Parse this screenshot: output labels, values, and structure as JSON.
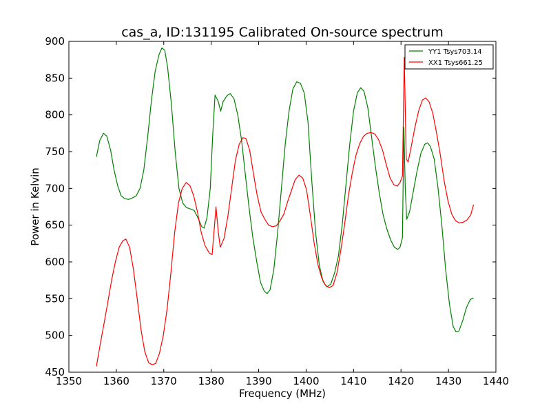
{
  "chart_data": {
    "type": "line",
    "title": "cas_a, ID:131195 Calibrated On-source spectrum",
    "xlabel": "Frequency (MHz)",
    "ylabel": "Power in Kelvin",
    "xlim": [
      1350,
      1440
    ],
    "ylim": [
      450,
      900
    ],
    "xticks": [
      1350,
      1360,
      1370,
      1380,
      1390,
      1400,
      1410,
      1420,
      1430,
      1440
    ],
    "yticks": [
      450,
      500,
      550,
      600,
      650,
      700,
      750,
      800,
      850,
      900
    ],
    "grid": false,
    "legend_position": "top-right",
    "series": [
      {
        "name": "YY1 Tsys703.14",
        "color": "#008000",
        "points": [
          [
            1355.8,
            743
          ],
          [
            1356.5,
            765
          ],
          [
            1357.3,
            775
          ],
          [
            1358,
            771
          ],
          [
            1358.8,
            752
          ],
          [
            1359.5,
            726
          ],
          [
            1360.3,
            703
          ],
          [
            1361,
            690
          ],
          [
            1361.8,
            686
          ],
          [
            1362.6,
            685
          ],
          [
            1363.4,
            687
          ],
          [
            1364.2,
            690
          ],
          [
            1365,
            700
          ],
          [
            1365.8,
            725
          ],
          [
            1366.6,
            770
          ],
          [
            1367.4,
            820
          ],
          [
            1368.2,
            860
          ],
          [
            1369,
            882
          ],
          [
            1369.6,
            891
          ],
          [
            1370.2,
            888
          ],
          [
            1370.8,
            865
          ],
          [
            1371.6,
            815
          ],
          [
            1372.4,
            750
          ],
          [
            1373.2,
            700
          ],
          [
            1374,
            680
          ],
          [
            1374.8,
            674
          ],
          [
            1375.6,
            672
          ],
          [
            1376.4,
            670
          ],
          [
            1377.2,
            660
          ],
          [
            1378,
            648
          ],
          [
            1378.5,
            646
          ],
          [
            1379.1,
            660
          ],
          [
            1379.8,
            700
          ],
          [
            1380.3,
            770
          ],
          [
            1380.8,
            827
          ],
          [
            1381.5,
            818
          ],
          [
            1382,
            805
          ],
          [
            1382.5,
            818
          ],
          [
            1383.3,
            826
          ],
          [
            1384,
            829
          ],
          [
            1384.8,
            822
          ],
          [
            1385.6,
            800
          ],
          [
            1386.4,
            765
          ],
          [
            1387.2,
            718
          ],
          [
            1388,
            672
          ],
          [
            1388.8,
            632
          ],
          [
            1389.6,
            600
          ],
          [
            1390.4,
            572
          ],
          [
            1391.2,
            560
          ],
          [
            1391.8,
            557
          ],
          [
            1392.4,
            562
          ],
          [
            1393.2,
            590
          ],
          [
            1394,
            640
          ],
          [
            1394.8,
            700
          ],
          [
            1395.6,
            760
          ],
          [
            1396.4,
            805
          ],
          [
            1397.2,
            835
          ],
          [
            1398,
            845
          ],
          [
            1398.8,
            843
          ],
          [
            1399.6,
            830
          ],
          [
            1400.4,
            790
          ],
          [
            1401.2,
            710
          ],
          [
            1402,
            640
          ],
          [
            1402.8,
            595
          ],
          [
            1403.6,
            573
          ],
          [
            1404.4,
            566
          ],
          [
            1405.2,
            570
          ],
          [
            1406,
            585
          ],
          [
            1406.8,
            608
          ],
          [
            1407.6,
            650
          ],
          [
            1408.4,
            705
          ],
          [
            1409.2,
            760
          ],
          [
            1410,
            805
          ],
          [
            1410.8,
            830
          ],
          [
            1411.5,
            837
          ],
          [
            1412.2,
            832
          ],
          [
            1413,
            810
          ],
          [
            1413.8,
            770
          ],
          [
            1414.6,
            730
          ],
          [
            1415.4,
            695
          ],
          [
            1416.2,
            665
          ],
          [
            1417,
            645
          ],
          [
            1417.8,
            630
          ],
          [
            1418.6,
            620
          ],
          [
            1419.3,
            617
          ],
          [
            1419.8,
            620
          ],
          [
            1420.3,
            633
          ],
          [
            1420.6,
            783
          ],
          [
            1420.9,
            700
          ],
          [
            1421.2,
            658
          ],
          [
            1421.8,
            668
          ],
          [
            1422.6,
            696
          ],
          [
            1423.4,
            724
          ],
          [
            1424.2,
            748
          ],
          [
            1425,
            760
          ],
          [
            1425.6,
            762
          ],
          [
            1426.2,
            757
          ],
          [
            1427,
            740
          ],
          [
            1427.8,
            700
          ],
          [
            1428.6,
            650
          ],
          [
            1429.4,
            590
          ],
          [
            1430.2,
            543
          ],
          [
            1431,
            512
          ],
          [
            1431.6,
            505
          ],
          [
            1432.2,
            506
          ],
          [
            1433,
            520
          ],
          [
            1433.8,
            538
          ],
          [
            1434.6,
            549
          ],
          [
            1435.3,
            551
          ]
        ]
      },
      {
        "name": "XX1 Tsys661.25",
        "color": "#ff0000",
        "points": [
          [
            1355.8,
            458
          ],
          [
            1356.6,
            488
          ],
          [
            1357.4,
            516
          ],
          [
            1358.2,
            545
          ],
          [
            1359,
            575
          ],
          [
            1359.8,
            600
          ],
          [
            1360.6,
            620
          ],
          [
            1361.4,
            629
          ],
          [
            1362,
            631
          ],
          [
            1362.8,
            620
          ],
          [
            1363.6,
            590
          ],
          [
            1364.4,
            550
          ],
          [
            1365.2,
            508
          ],
          [
            1366,
            478
          ],
          [
            1366.8,
            463
          ],
          [
            1367.6,
            460
          ],
          [
            1368.3,
            462
          ],
          [
            1369.1,
            476
          ],
          [
            1369.9,
            500
          ],
          [
            1370.7,
            536
          ],
          [
            1371.5,
            585
          ],
          [
            1372.3,
            640
          ],
          [
            1373.1,
            680
          ],
          [
            1373.9,
            700
          ],
          [
            1374.7,
            708
          ],
          [
            1375.5,
            704
          ],
          [
            1376.3,
            690
          ],
          [
            1377.1,
            668
          ],
          [
            1377.9,
            640
          ],
          [
            1378.7,
            622
          ],
          [
            1379.6,
            612
          ],
          [
            1380.2,
            610
          ],
          [
            1380.7,
            650
          ],
          [
            1381,
            675
          ],
          [
            1381.5,
            640
          ],
          [
            1381.9,
            620
          ],
          [
            1382.7,
            632
          ],
          [
            1383.5,
            662
          ],
          [
            1384.3,
            700
          ],
          [
            1385.1,
            738
          ],
          [
            1385.9,
            760
          ],
          [
            1386.7,
            769
          ],
          [
            1387.3,
            768
          ],
          [
            1388.1,
            752
          ],
          [
            1388.9,
            720
          ],
          [
            1389.7,
            690
          ],
          [
            1390.5,
            668
          ],
          [
            1391.3,
            658
          ],
          [
            1392.1,
            650
          ],
          [
            1392.9,
            648
          ],
          [
            1393.7,
            649
          ],
          [
            1394.5,
            656
          ],
          [
            1395.3,
            665
          ],
          [
            1396.1,
            682
          ],
          [
            1396.9,
            697
          ],
          [
            1397.7,
            712
          ],
          [
            1398.5,
            718
          ],
          [
            1399.3,
            714
          ],
          [
            1400.1,
            698
          ],
          [
            1400.9,
            663
          ],
          [
            1401.7,
            625
          ],
          [
            1402.5,
            596
          ],
          [
            1403.3,
            578
          ],
          [
            1404.1,
            568
          ],
          [
            1404.9,
            565
          ],
          [
            1405.7,
            568
          ],
          [
            1406.5,
            585
          ],
          [
            1407.3,
            615
          ],
          [
            1408.1,
            650
          ],
          [
            1408.9,
            690
          ],
          [
            1409.7,
            720
          ],
          [
            1410.5,
            745
          ],
          [
            1411.3,
            761
          ],
          [
            1412.1,
            771
          ],
          [
            1412.9,
            775
          ],
          [
            1413.7,
            776
          ],
          [
            1414.5,
            774
          ],
          [
            1415.3,
            766
          ],
          [
            1416.1,
            752
          ],
          [
            1416.9,
            732
          ],
          [
            1417.7,
            714
          ],
          [
            1418.5,
            705
          ],
          [
            1419.2,
            703
          ],
          [
            1419.8,
            708
          ],
          [
            1420.3,
            717
          ],
          [
            1420.7,
            878
          ],
          [
            1421.1,
            740
          ],
          [
            1421.5,
            736
          ],
          [
            1422.1,
            755
          ],
          [
            1422.9,
            782
          ],
          [
            1423.7,
            805
          ],
          [
            1424.5,
            820
          ],
          [
            1425.2,
            823
          ],
          [
            1425.9,
            818
          ],
          [
            1426.7,
            802
          ],
          [
            1427.5,
            775
          ],
          [
            1428.3,
            745
          ],
          [
            1429.1,
            710
          ],
          [
            1429.9,
            683
          ],
          [
            1430.7,
            665
          ],
          [
            1431.5,
            656
          ],
          [
            1432.3,
            653
          ],
          [
            1433.1,
            654
          ],
          [
            1433.9,
            657
          ],
          [
            1434.7,
            664
          ],
          [
            1435.3,
            678
          ]
        ]
      }
    ]
  }
}
